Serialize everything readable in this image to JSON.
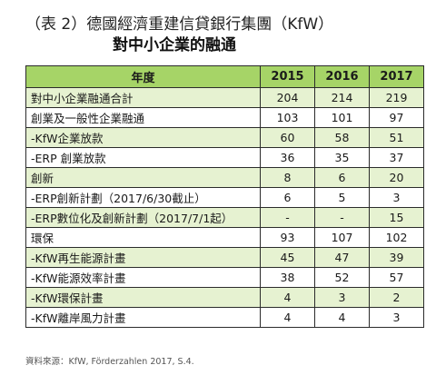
{
  "title": {
    "line1": "（表 2）德國經濟重建信貸銀行集團（KfW）",
    "line2": "對中小企業的融通"
  },
  "table": {
    "header": [
      "年度",
      "2015",
      "2016",
      "2017"
    ],
    "rows": [
      {
        "label": "對中小企業融通合計",
        "v2015": "204",
        "v2016": "214",
        "v2017": "219"
      },
      {
        "label": "創業及一般性企業融通",
        "v2015": "103",
        "v2016": "101",
        "v2017": "97"
      },
      {
        "label": "-KfW企業放款",
        "v2015": "60",
        "v2016": "58",
        "v2017": "51"
      },
      {
        "label": "-ERP 創業放款",
        "v2015": "36",
        "v2016": "35",
        "v2017": "37"
      },
      {
        "label": "創新",
        "v2015": "8",
        "v2016": "6",
        "v2017": "20"
      },
      {
        "label": "-ERP創新計劃（2017/6/30截止）",
        "v2015": "6",
        "v2016": "5",
        "v2017": "3"
      },
      {
        "label": "-ERP數位化及創新計劃（2017/7/1起）",
        "v2015": "-",
        "v2016": "-",
        "v2017": "15"
      },
      {
        "label": "環保",
        "v2015": "93",
        "v2016": "107",
        "v2017": "102"
      },
      {
        "label": "-KfW再生能源計畫",
        "v2015": "45",
        "v2016": "47",
        "v2017": "39"
      },
      {
        "label": "-KfW能源效率計畫",
        "v2015": "38",
        "v2016": "52",
        "v2017": "57"
      },
      {
        "label": "-KfW環保計畫",
        "v2015": "4",
        "v2016": "3",
        "v2017": "2"
      },
      {
        "label": "-KfW離岸風力計畫",
        "v2015": "4",
        "v2016": "4",
        "v2017": "3"
      }
    ]
  },
  "source": "資料來源：KfW, Förderzahlen 2017, S.4.",
  "colors": {
    "header_bg": "#a6d467",
    "stripe_bg": "#e6f2d1",
    "border": "#2b2b2b"
  }
}
